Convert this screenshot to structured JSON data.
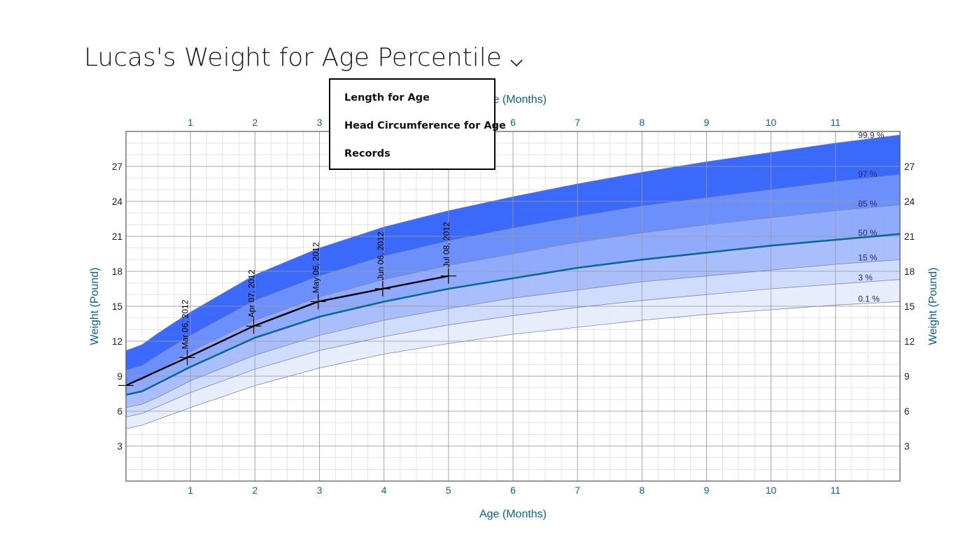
{
  "header": {
    "title": "Lucas's Weight for Age Percentile",
    "dropdown_icon": "chevron-down-icon"
  },
  "menu": {
    "items": [
      "Length for Age",
      "Head Circumference for Age",
      "Records"
    ]
  },
  "chart_data": {
    "type": "line",
    "title": "",
    "xlabel_top": "Age (Months)",
    "xlabel_bottom": "Age (Months)",
    "ylabel_left": "Weight (Pound)",
    "ylabel_right": "Weight (Pound)",
    "xlim": [
      0,
      12
    ],
    "ylim": [
      0,
      30
    ],
    "x_ticks": [
      1,
      2,
      3,
      4,
      5,
      6,
      7,
      8,
      9,
      10,
      11
    ],
    "y_ticks": [
      3,
      6,
      9,
      12,
      15,
      18,
      21,
      24,
      27
    ],
    "x_axis_color": "#0e6194",
    "curve_x": [
      0,
      0.25,
      0.5,
      1,
      2,
      3,
      4,
      5,
      6,
      7,
      8,
      9,
      10,
      11,
      12
    ],
    "percentiles": [
      {
        "name": "0.1 %",
        "values": [
          4.5,
          4.8,
          5.3,
          6.3,
          8.2,
          9.7,
          10.9,
          11.8,
          12.6,
          13.2,
          13.8,
          14.3,
          14.7,
          15.1,
          15.4
        ]
      },
      {
        "name": "3 %",
        "values": [
          5.5,
          5.8,
          6.4,
          7.6,
          9.6,
          11.2,
          12.4,
          13.4,
          14.2,
          14.9,
          15.5,
          16.0,
          16.5,
          16.9,
          17.3
        ]
      },
      {
        "name": "15 %",
        "values": [
          6.3,
          6.6,
          7.2,
          8.6,
          10.8,
          12.5,
          13.8,
          14.8,
          15.7,
          16.4,
          17.1,
          17.6,
          18.1,
          18.6,
          19.0
        ]
      },
      {
        "name": "50 %",
        "values": [
          7.4,
          7.7,
          8.4,
          9.8,
          12.3,
          14.1,
          15.4,
          16.5,
          17.4,
          18.3,
          19.0,
          19.6,
          20.2,
          20.7,
          21.2
        ]
      },
      {
        "name": "85 %",
        "values": [
          8.4,
          8.7,
          9.5,
          11.1,
          13.8,
          15.8,
          17.3,
          18.5,
          19.5,
          20.5,
          21.3,
          22.0,
          22.6,
          23.2,
          23.7
        ]
      },
      {
        "name": "97 %",
        "values": [
          9.5,
          9.9,
          10.8,
          12.5,
          15.5,
          17.6,
          19.3,
          20.6,
          21.7,
          22.7,
          23.6,
          24.3,
          25.0,
          25.7,
          26.3
        ]
      },
      {
        "name": "99.9 %",
        "values": [
          11.2,
          11.7,
          12.7,
          14.5,
          17.7,
          20.0,
          21.8,
          23.2,
          24.4,
          25.5,
          26.5,
          27.4,
          28.2,
          29.0,
          29.7
        ]
      }
    ],
    "band_colors": [
      "#e6ecfb",
      "#ccdafb",
      "#a4bbfb",
      "#8aa6fb",
      "#638afb",
      "#3062fb"
    ],
    "median_color": "#0b6794",
    "measurements": {
      "name": "Lucas",
      "color": "#000000",
      "points": [
        {
          "x": 0.0,
          "y": 8.2,
          "label": ""
        },
        {
          "x": 0.95,
          "y": 10.6,
          "label": "Mar 06, 2012"
        },
        {
          "x": 1.98,
          "y": 13.3,
          "label": "Apr 07, 2012"
        },
        {
          "x": 2.98,
          "y": 15.4,
          "label": "May 06, 2012"
        },
        {
          "x": 3.98,
          "y": 16.5,
          "label": "Jun 06, 2012"
        },
        {
          "x": 5.0,
          "y": 17.6,
          "label": "Jul 08, 2012"
        }
      ]
    }
  }
}
